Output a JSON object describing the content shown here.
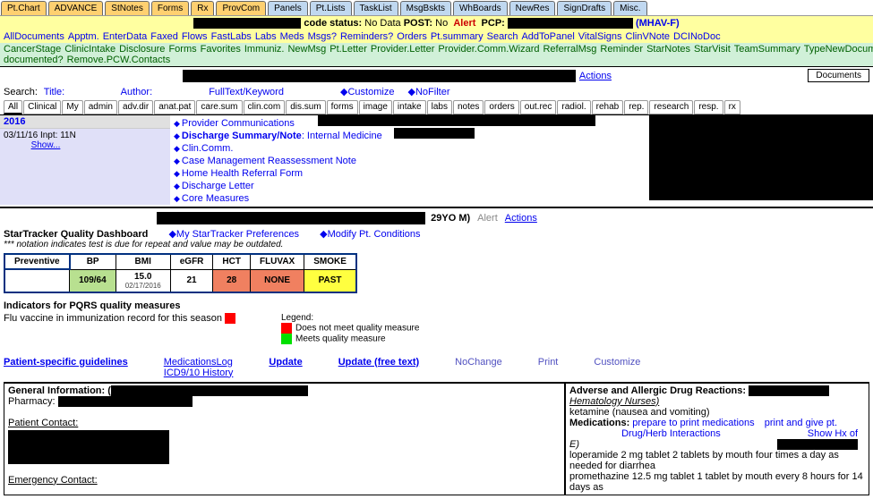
{
  "topTabs": [
    {
      "label": "Pt.Chart",
      "cls": "orange"
    },
    {
      "label": "ADVANCE",
      "cls": "orange"
    },
    {
      "label": "StNotes",
      "cls": "orange"
    },
    {
      "label": "Forms",
      "cls": "orange"
    },
    {
      "label": "Rx",
      "cls": "orange"
    },
    {
      "label": "ProvCom",
      "cls": "orange"
    },
    {
      "label": "Panels",
      "cls": "blue"
    },
    {
      "label": "Pt.Lists",
      "cls": "blue"
    },
    {
      "label": "TaskList",
      "cls": "blue"
    },
    {
      "label": "MsgBskts",
      "cls": "blue"
    },
    {
      "label": "WhBoards",
      "cls": "blue"
    },
    {
      "label": "NewRes",
      "cls": "blue"
    },
    {
      "label": "SignDrafts",
      "cls": "blue"
    },
    {
      "label": "Misc.",
      "cls": "blue"
    }
  ],
  "statusBar": {
    "codeStatusLabel": "code status:",
    "codeStatusVal": "No Data",
    "postLabel": "POST:",
    "postVal": "No",
    "alert": "Alert",
    "pcpLabel": "PCP:",
    "mhav": "(MHAV-F)"
  },
  "row2": [
    "AllDocuments",
    "Apptm.",
    "EnterData",
    "Faxed",
    "Flows",
    "FastLabs",
    "Labs",
    "Meds",
    "Msgs?",
    "Reminders?",
    "Orders",
    "Pt.summary",
    "Search",
    "AddToPanel",
    "VitalSigns",
    "ClinVNote",
    "DCINoDoc"
  ],
  "row3": [
    "CancerStage",
    "ClinicIntake",
    "Disclosure",
    "Forms",
    "Favorites",
    "Immuniz.",
    "NewMsg",
    "Pt.Letter",
    "Provider.Letter",
    "Provider.Comm.Wizard",
    "ReferralMsg",
    "Reminder",
    "StarNotes",
    "StarVisit",
    "TeamSummary",
    "TypeNewDocument",
    "UploadImage",
    "VitalSigns",
    "AuthorizeAccess",
    "MHaVFullAccess",
    "InitiatedAccess",
    "Who documented?",
    "Remove.PCW.Contacts"
  ],
  "titleRow": {
    "actions": "Actions",
    "documents": "Documents"
  },
  "search": {
    "label": "Search:",
    "title": "Title:",
    "author": "Author:",
    "fulltext": "FullText/Keyword",
    "customize": "◆Customize",
    "nofilter": "◆NoFilter"
  },
  "filterTabs": [
    "All",
    "Clinical",
    "My",
    "admin",
    "adv.dir",
    "anat.pat",
    "care.sum",
    "clin.com",
    "dis.sum",
    "forms",
    "image",
    "intake",
    "labs",
    "notes",
    "orders",
    "out.rec",
    "radiol.",
    "rehab",
    "rep.",
    "research",
    "resp.",
    "rx"
  ],
  "year": "2016",
  "visit": {
    "date": "03/11/16",
    "inpt": "Inpt: 11N",
    "show": "Show..."
  },
  "docs": [
    {
      "label": "Provider Communications",
      "bold": false
    },
    {
      "label": "Discharge Summary/Note",
      "bold": true,
      "suffix": ": Internal Medicine"
    },
    {
      "label": "Clin.Comm.",
      "bold": false
    },
    {
      "label": "Case Management Reassessment Note",
      "bold": false
    },
    {
      "label": "Home Health Referral Form",
      "bold": false
    },
    {
      "label": "Discharge Letter",
      "bold": false
    },
    {
      "label": "Core Measures",
      "bold": false
    }
  ],
  "stHeader": {
    "age": "29YO M)",
    "alert": "Alert",
    "actions": "Actions"
  },
  "stTitle": {
    "title": "StarTracker Quality Dashboard",
    "pref": "◆My StarTracker Preferences",
    "modify": "◆Modify Pt. Conditions"
  },
  "stNote": "*** notation indicates test is due for repeat and value may be outdated.",
  "stTable": {
    "headers": [
      "Preventive",
      "BP",
      "BMI",
      "eGFR",
      "HCT",
      "FLUVAX",
      "SMOKE"
    ],
    "cells": [
      {
        "val": "",
        "cls": ""
      },
      {
        "val": "109/64",
        "cls": "cell-green"
      },
      {
        "val": "15.0",
        "sub": "02/17/2016",
        "cls": ""
      },
      {
        "val": "21",
        "cls": ""
      },
      {
        "val": "28",
        "cls": "cell-orange"
      },
      {
        "val": "NONE",
        "cls": "cell-orange"
      },
      {
        "val": "PAST",
        "cls": "cell-yellow"
      }
    ]
  },
  "pqrs": {
    "title": "Indicators for PQRS quality measures",
    "line": "Flu vaccine in immunization record for this season",
    "legendTitle": "Legend:",
    "legendNo": "Does not meet quality measure",
    "legendYes": "Meets quality measure"
  },
  "guideRow": {
    "psg": "Patient-specific guidelines",
    "medlog": "MedicationsLog",
    "icd": "ICD9/10 History",
    "update": "Update",
    "updateFree": "Update (free text)",
    "nochange": "NoChange",
    "print": "Print",
    "customize": "Customize"
  },
  "bottomLeft": {
    "gen": "General Information: (",
    "pharm": "Pharmacy:",
    "contact": "Patient Contact:",
    "emerg": "Emergency Contact:"
  },
  "bottomRight": {
    "adr": "Adverse and Allergic Drug Reactions:",
    "hemat": "Hematology Nurses)",
    "ketamine": "ketamine (nausea and vomiting)",
    "medsLabel": "Medications:",
    "prep": "prepare to print medications",
    "printgive": "print and give pt.",
    "drugherb": "Drug/Herb Interactions",
    "showhx": "Show Hx of",
    "e": "E)",
    "med1": "loperamide 2 mg tablet 2 tablets by mouth four times a day as needed for diarrhea",
    "med2": "promethazine 12.5 mg tablet 1 tablet by mouth every 8 hours for 14 days as"
  }
}
